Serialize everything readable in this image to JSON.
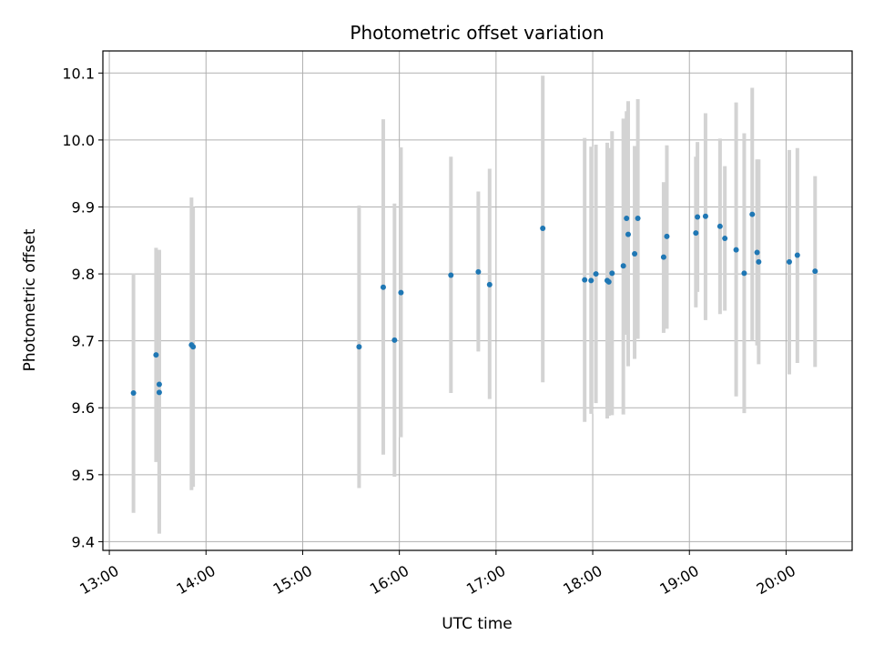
{
  "chart_data": {
    "type": "scatter",
    "title": "Photometric offset variation",
    "xlabel": "UTC time",
    "ylabel": "Photometric offset",
    "x_tick_labels": [
      "13:00",
      "14:00",
      "15:00",
      "16:00",
      "17:00",
      "18:00",
      "19:00",
      "20:00"
    ],
    "y_tick_labels": [
      "9.4",
      "9.5",
      "9.6",
      "9.7",
      "9.8",
      "9.9",
      "10.0",
      "10.1"
    ],
    "xlim": [
      "12:56",
      "20:41"
    ],
    "ylim": [
      9.387,
      10.133
    ],
    "grid": true,
    "legend": "none",
    "colors": {
      "points": "#1f77b4",
      "error_bars": "#d3d3d3",
      "grid": "#b0b0b0",
      "axes": "#000000"
    },
    "points": [
      {
        "x": "13:15",
        "y": 9.622,
        "yerr_low": 9.443,
        "yerr_high": 9.801
      },
      {
        "x": "13:29",
        "y": 9.679,
        "yerr_low": 9.519,
        "yerr_high": 9.839
      },
      {
        "x": "13:31",
        "y": 9.635,
        "yerr_low": 9.434,
        "yerr_high": 9.836
      },
      {
        "x": "13:31",
        "y": 9.623,
        "yerr_low": 9.412,
        "yerr_high": 9.834
      },
      {
        "x": "13:51",
        "y": 9.694,
        "yerr_low": 9.477,
        "yerr_high": 9.914
      },
      {
        "x": "13:52",
        "y": 9.691,
        "yerr_low": 9.482,
        "yerr_high": 9.9
      },
      {
        "x": "15:35",
        "y": 9.691,
        "yerr_low": 9.48,
        "yerr_high": 9.902
      },
      {
        "x": "15:50",
        "y": 9.78,
        "yerr_low": 9.53,
        "yerr_high": 10.031
      },
      {
        "x": "15:57",
        "y": 9.701,
        "yerr_low": 9.497,
        "yerr_high": 9.905
      },
      {
        "x": "16:01",
        "y": 9.772,
        "yerr_low": 9.556,
        "yerr_high": 9.989
      },
      {
        "x": "16:32",
        "y": 9.798,
        "yerr_low": 9.622,
        "yerr_high": 9.975
      },
      {
        "x": "16:49",
        "y": 9.803,
        "yerr_low": 9.684,
        "yerr_high": 9.923
      },
      {
        "x": "16:56",
        "y": 9.784,
        "yerr_low": 9.613,
        "yerr_high": 9.957
      },
      {
        "x": "17:29",
        "y": 9.868,
        "yerr_low": 9.638,
        "yerr_high": 10.096
      },
      {
        "x": "17:55",
        "y": 9.791,
        "yerr_low": 9.579,
        "yerr_high": 10.003
      },
      {
        "x": "17:59",
        "y": 9.79,
        "yerr_low": 9.591,
        "yerr_high": 9.99
      },
      {
        "x": "18:02",
        "y": 9.8,
        "yerr_low": 9.607,
        "yerr_high": 9.993
      },
      {
        "x": "18:09",
        "y": 9.79,
        "yerr_low": 9.584,
        "yerr_high": 9.996
      },
      {
        "x": "18:10",
        "y": 9.788,
        "yerr_low": 9.588,
        "yerr_high": 9.988
      },
      {
        "x": "18:12",
        "y": 9.801,
        "yerr_low": 9.589,
        "yerr_high": 10.013
      },
      {
        "x": "18:19",
        "y": 9.812,
        "yerr_low": 9.59,
        "yerr_high": 10.032
      },
      {
        "x": "18:21",
        "y": 9.883,
        "yerr_low": 9.709,
        "yerr_high": 10.043
      },
      {
        "x": "18:22",
        "y": 9.859,
        "yerr_low": 9.662,
        "yerr_high": 10.058
      },
      {
        "x": "18:26",
        "y": 9.83,
        "yerr_low": 9.673,
        "yerr_high": 9.991
      },
      {
        "x": "18:28",
        "y": 9.883,
        "yerr_low": 9.703,
        "yerr_high": 10.061
      },
      {
        "x": "18:44",
        "y": 9.825,
        "yerr_low": 9.712,
        "yerr_high": 9.937
      },
      {
        "x": "18:46",
        "y": 9.856,
        "yerr_low": 9.718,
        "yerr_high": 9.992
      },
      {
        "x": "19:04",
        "y": 9.861,
        "yerr_low": 9.75,
        "yerr_high": 9.975
      },
      {
        "x": "19:05",
        "y": 9.885,
        "yerr_low": 9.773,
        "yerr_high": 9.997
      },
      {
        "x": "19:10",
        "y": 9.886,
        "yerr_low": 9.731,
        "yerr_high": 10.04
      },
      {
        "x": "19:19",
        "y": 9.871,
        "yerr_low": 9.74,
        "yerr_high": 10.002
      },
      {
        "x": "19:22",
        "y": 9.853,
        "yerr_low": 9.745,
        "yerr_high": 9.961
      },
      {
        "x": "19:29",
        "y": 9.836,
        "yerr_low": 9.617,
        "yerr_high": 10.056
      },
      {
        "x": "19:34",
        "y": 9.801,
        "yerr_low": 9.592,
        "yerr_high": 10.01
      },
      {
        "x": "19:39",
        "y": 9.889,
        "yerr_low": 9.7,
        "yerr_high": 10.078
      },
      {
        "x": "19:42",
        "y": 9.832,
        "yerr_low": 9.693,
        "yerr_high": 9.971
      },
      {
        "x": "19:43",
        "y": 9.818,
        "yerr_low": 9.665,
        "yerr_high": 9.971
      },
      {
        "x": "20:02",
        "y": 9.818,
        "yerr_low": 9.65,
        "yerr_high": 9.985
      },
      {
        "x": "20:07",
        "y": 9.828,
        "yerr_low": 9.667,
        "yerr_high": 9.988
      },
      {
        "x": "20:18",
        "y": 9.804,
        "yerr_low": 9.661,
        "yerr_high": 9.946
      }
    ]
  }
}
